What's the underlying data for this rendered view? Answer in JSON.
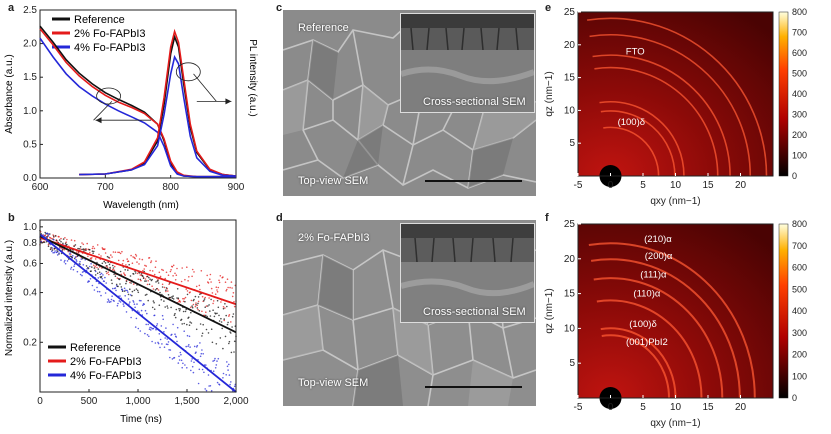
{
  "panels": {
    "a": {
      "label": "a",
      "xlabel": "Wavelength (nm)",
      "ylabel_left": "Absorbance (a.u.)",
      "ylabel_right": "PL intensity (a.u.)",
      "legend": [
        "Reference",
        "2% Fo-FAPbI3",
        "4% Fo-FAPbI3"
      ]
    },
    "b": {
      "label": "b",
      "xlabel": "Time (ns)",
      "ylabel": "Normalized intensity (a.u.)",
      "legend": [
        "Reference",
        "2% Fo-FAPbI3",
        "4% Fo-FAPbI3"
      ]
    },
    "c": {
      "label": "c",
      "caption_top": "Reference",
      "caption_inset": "Cross-sectional SEM",
      "caption_bottom": "Top-view SEM"
    },
    "d": {
      "label": "d",
      "caption_top": "2% Fo-FAPbI3",
      "caption_inset": "Cross-sectional SEM",
      "caption_bottom": "Top-view SEM"
    },
    "e": {
      "label": "e",
      "xlabel": "qxy (nm−1)",
      "ylabel": "qz (nm−1)",
      "annotations": [
        "FTO",
        "(100)δ"
      ]
    },
    "f": {
      "label": "f",
      "xlabel": "qxy (nm−1)",
      "ylabel": "qz (nm−1)",
      "annotations": [
        "(210)α",
        "(200)α",
        "(111)α",
        "(110)α",
        "(100)δ",
        "(001)PbI2"
      ]
    }
  },
  "colors": {
    "reference": "#111111",
    "fo2": "#e41b1b",
    "fo4": "#2427d8"
  },
  "chart_data": [
    {
      "type": "line",
      "panel": "a",
      "title": "",
      "xlabel": "Wavelength (nm)",
      "ylabel": "Absorbance (a.u.)",
      "xlim": [
        600,
        900
      ],
      "ylim": [
        0,
        2.5
      ],
      "xticks": [
        600,
        700,
        800,
        900
      ],
      "yticks": [
        0.0,
        0.5,
        1.0,
        1.5,
        2.0,
        2.5
      ],
      "x": [
        600,
        620,
        640,
        660,
        680,
        700,
        720,
        740,
        760,
        780,
        790,
        800,
        810,
        820,
        840,
        860,
        880,
        900
      ],
      "series": [
        {
          "name": "Reference",
          "color": "#111111",
          "y": [
            2.26,
            2.02,
            1.76,
            1.56,
            1.4,
            1.27,
            1.17,
            1.08,
            0.98,
            0.8,
            0.55,
            0.22,
            0.07,
            0.03,
            0.02,
            0.02,
            0.02,
            0.02
          ]
        },
        {
          "name": "2% Fo-FAPbI3",
          "color": "#e41b1b",
          "y": [
            2.22,
            1.98,
            1.72,
            1.52,
            1.36,
            1.23,
            1.13,
            1.05,
            0.96,
            0.8,
            0.58,
            0.25,
            0.09,
            0.04,
            0.02,
            0.02,
            0.02,
            0.02
          ]
        },
        {
          "name": "4% Fo-FAPbI3",
          "color": "#2427d8",
          "y": [
            2.08,
            1.8,
            1.55,
            1.36,
            1.22,
            1.1,
            1.0,
            0.91,
            0.82,
            0.68,
            0.47,
            0.18,
            0.06,
            0.03,
            0.02,
            0.02,
            0.02,
            0.02
          ]
        }
      ],
      "pl_series": [
        {
          "name": "Reference",
          "color": "#111111",
          "x": [
            660,
            700,
            740,
            760,
            780,
            790,
            800,
            806,
            812,
            820,
            830,
            840,
            860,
            880,
            900
          ],
          "y": [
            0.05,
            0.06,
            0.12,
            0.22,
            0.55,
            1.1,
            1.85,
            2.1,
            1.95,
            1.4,
            0.75,
            0.38,
            0.12,
            0.05,
            0.03
          ]
        },
        {
          "name": "2% Fo-FAPbI3",
          "color": "#e41b1b",
          "x": [
            660,
            700,
            740,
            760,
            780,
            790,
            800,
            806,
            812,
            820,
            830,
            840,
            860,
            880,
            900
          ],
          "y": [
            0.05,
            0.06,
            0.13,
            0.24,
            0.6,
            1.2,
            1.95,
            2.18,
            2.02,
            1.48,
            0.8,
            0.4,
            0.13,
            0.05,
            0.03
          ]
        },
        {
          "name": "4% Fo-FAPbI3",
          "color": "#2427d8",
          "x": [
            660,
            700,
            740,
            760,
            780,
            790,
            800,
            806,
            812,
            820,
            830,
            840,
            860,
            880,
            900
          ],
          "y": [
            0.05,
            0.06,
            0.12,
            0.2,
            0.48,
            0.95,
            1.55,
            1.8,
            1.7,
            1.2,
            0.62,
            0.3,
            0.1,
            0.04,
            0.03
          ]
        }
      ]
    },
    {
      "type": "scatter",
      "panel": "b",
      "title": "",
      "xlabel": "Time (ns)",
      "ylabel": "Normalized intensity (a.u.)",
      "xlim": [
        0,
        2000
      ],
      "ylim": [
        0.1,
        1.1
      ],
      "yscale": "log",
      "xticks": [
        0,
        500,
        1000,
        1500,
        2000
      ],
      "xticklabels": [
        "0",
        "500",
        "1,000",
        "1,500",
        "2,000"
      ],
      "yticks": [
        0.2,
        0.4,
        0.6,
        0.8,
        1.0
      ],
      "series": [
        {
          "name": "Reference",
          "color": "#111111",
          "fit_x": [
            0,
            2000
          ],
          "fit_y": [
            0.88,
            0.23
          ]
        },
        {
          "name": "2% Fo-FAPbI3",
          "color": "#e41b1b",
          "fit_x": [
            0,
            2000
          ],
          "fit_y": [
            0.86,
            0.34
          ]
        },
        {
          "name": "4% Fo-FAPbI3",
          "color": "#2427d8",
          "fit_x": [
            0,
            2000
          ],
          "fit_y": [
            0.9,
            0.1
          ]
        }
      ]
    },
    {
      "type": "heatmap",
      "panel": "e",
      "xlabel": "qxy (nm−1)",
      "ylabel": "qz (nm−1)",
      "xlim": [
        -5,
        25
      ],
      "ylim": [
        0,
        25
      ],
      "xticks": [
        -5,
        0,
        5,
        10,
        15,
        20
      ],
      "yticks": [
        5,
        10,
        15,
        20,
        25
      ],
      "colorbar_ticks": [
        0,
        100,
        200,
        300,
        400,
        500,
        600,
        700,
        800
      ],
      "rings_q": [
        7.4,
        9.9,
        11.3,
        16.5,
        18.4,
        21.5,
        24.0
      ]
    },
    {
      "type": "heatmap",
      "panel": "f",
      "xlabel": "qxy (nm−1)",
      "ylabel": "qz (nm−1)",
      "xlim": [
        -5,
        25
      ],
      "ylim": [
        0,
        25
      ],
      "xticks": [
        -5,
        0,
        5,
        10,
        15,
        20
      ],
      "yticks": [
        5,
        10,
        15,
        20,
        25
      ],
      "colorbar_ticks": [
        0,
        100,
        200,
        300,
        400,
        500,
        600,
        700,
        800
      ],
      "rings_q": [
        9.0,
        10.0,
        14.0,
        17.2,
        19.9,
        22.2
      ]
    }
  ]
}
